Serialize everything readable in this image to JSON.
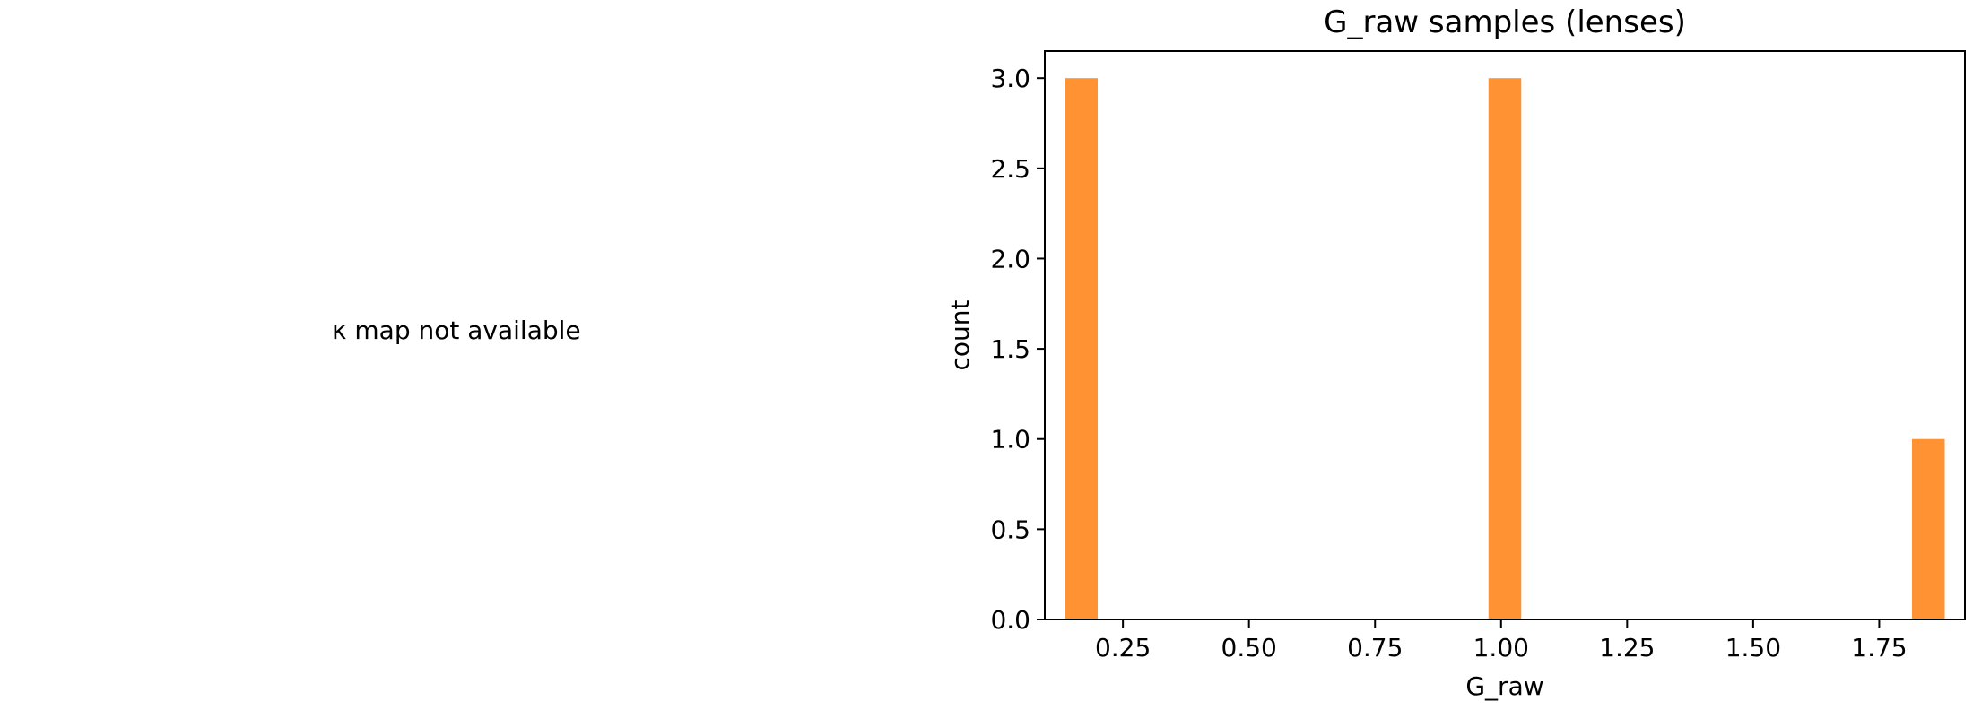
{
  "left_panel": {
    "message": "κ map not available"
  },
  "chart_data": {
    "type": "bar",
    "title": "G_raw samples (lenses)",
    "xlabel": "G_raw",
    "ylabel": "count",
    "bins": [
      {
        "x0": 0.135,
        "x1": 0.2,
        "count": 3
      },
      {
        "x0": 0.975,
        "x1": 1.04,
        "count": 3
      },
      {
        "x0": 1.815,
        "x1": 1.88,
        "count": 1
      }
    ],
    "xlim": [
      0.095,
      1.92
    ],
    "ylim": [
      0,
      3.15
    ],
    "xticks": [
      "0.25",
      "0.50",
      "0.75",
      "1.00",
      "1.25",
      "1.50",
      "1.75"
    ],
    "xtick_values": [
      0.25,
      0.5,
      0.75,
      1.0,
      1.25,
      1.5,
      1.75
    ],
    "yticks": [
      "0.0",
      "0.5",
      "1.0",
      "1.5",
      "2.0",
      "2.5",
      "3.0"
    ],
    "ytick_values": [
      0,
      0.5,
      1.0,
      1.5,
      2.0,
      2.5,
      3.0
    ],
    "bar_color": "#ff9333",
    "grid": false
  }
}
